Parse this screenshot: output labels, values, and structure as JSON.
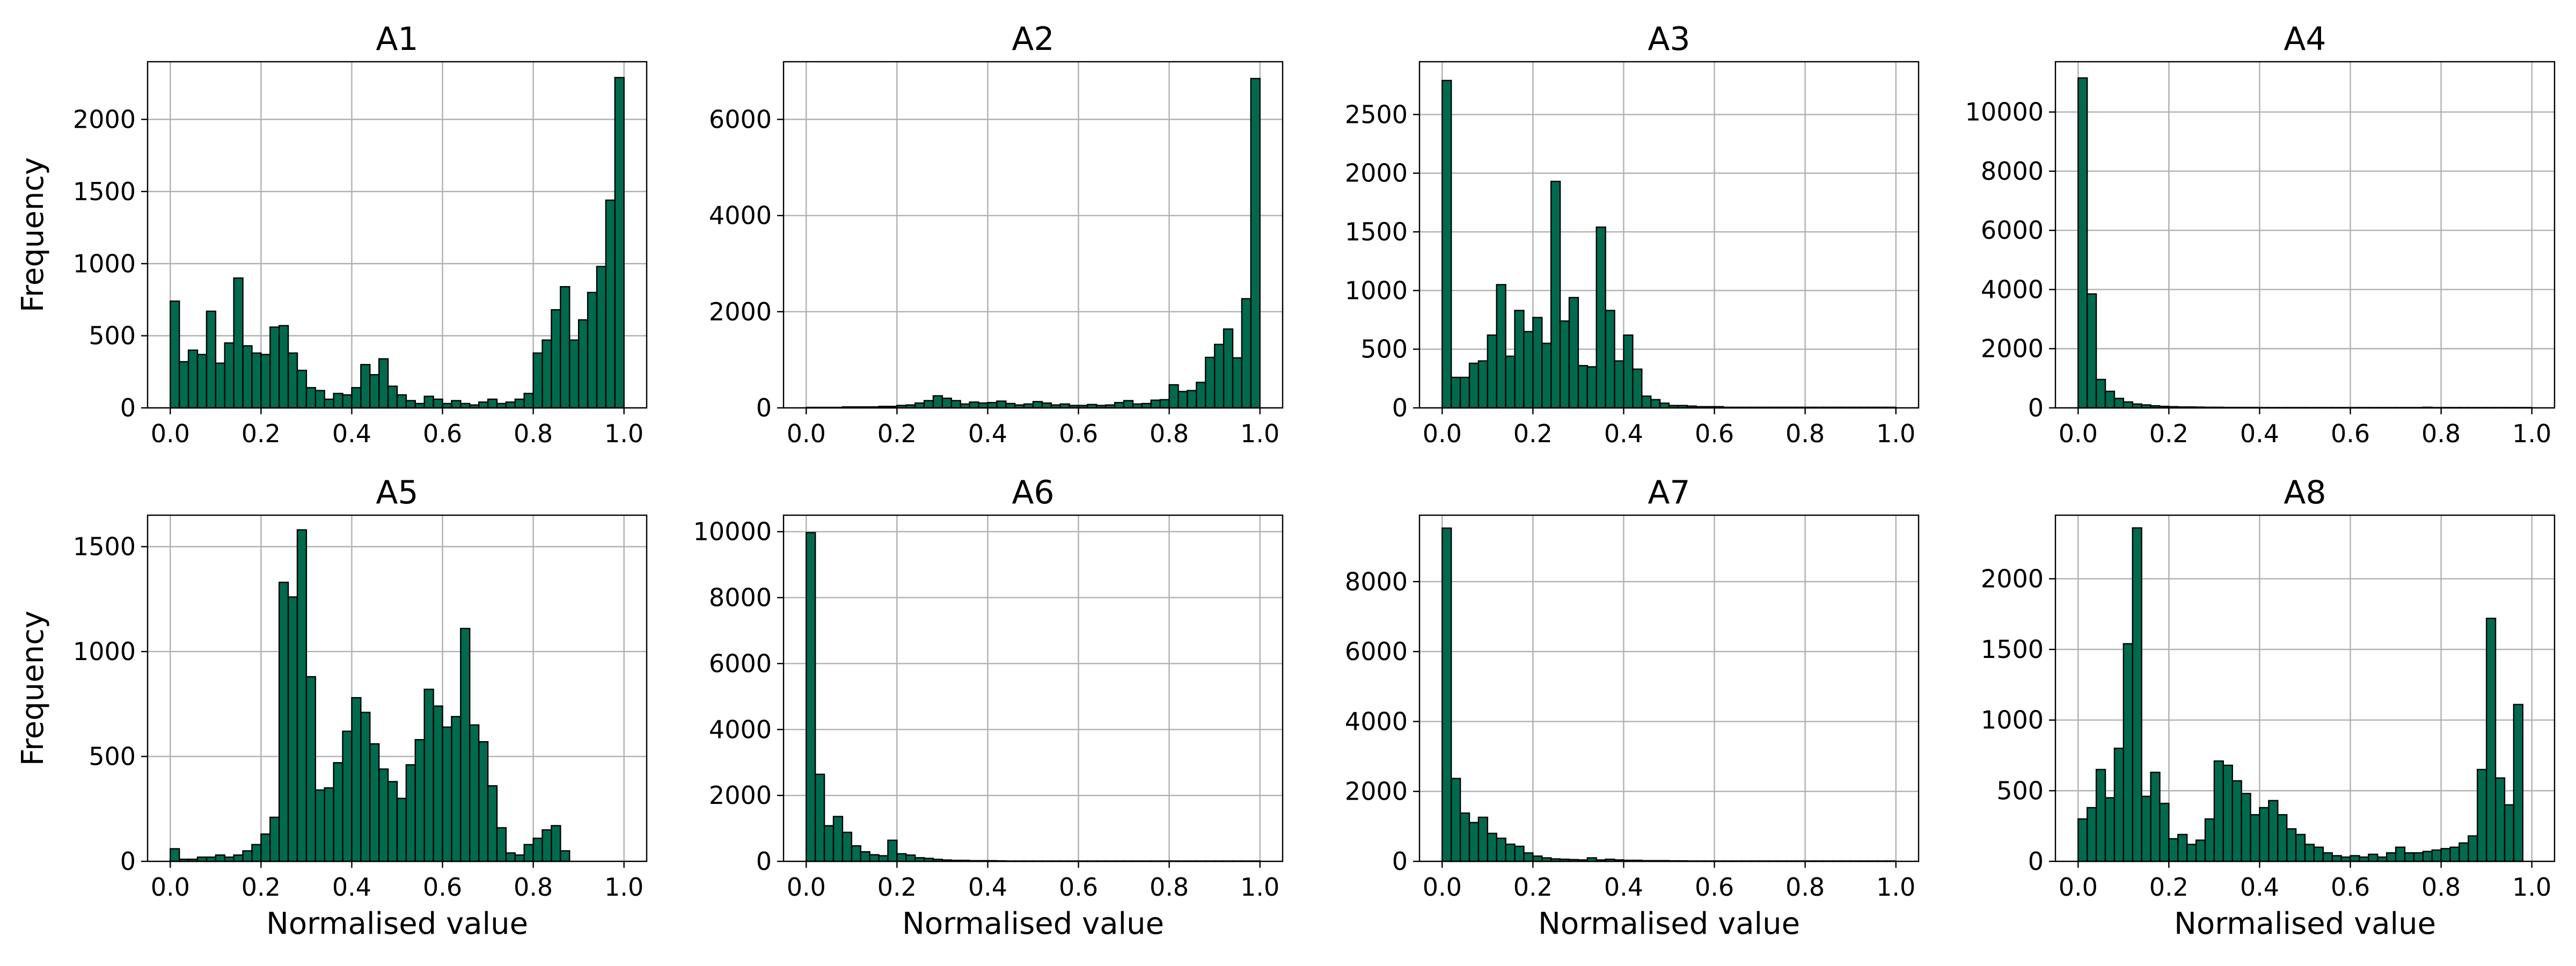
{
  "chart_data": {
    "type": "bar",
    "color": "#006a4e",
    "edge_color": "#000000",
    "grid": true,
    "subplots": [
      {
        "title": "A1",
        "ylabel": "Frequency",
        "xlabel": "",
        "xlim": [
          0,
          1
        ],
        "ylim": [
          0,
          2400
        ],
        "yticks": [
          "0",
          "500",
          "1000",
          "1500",
          "2000"
        ],
        "xticks": [
          "0.0",
          "0.2",
          "0.4",
          "0.6",
          "0.8",
          "1.0"
        ],
        "bin_width": 0.02,
        "values": [
          740,
          320,
          400,
          370,
          670,
          310,
          450,
          900,
          430,
          380,
          370,
          560,
          570,
          380,
          260,
          140,
          120,
          60,
          100,
          90,
          140,
          300,
          230,
          340,
          150,
          90,
          50,
          30,
          80,
          60,
          30,
          50,
          30,
          20,
          40,
          60,
          30,
          40,
          60,
          100,
          380,
          470,
          680,
          840,
          470,
          610,
          800,
          980,
          1440,
          2290
        ]
      },
      {
        "title": "A2",
        "ylabel": "",
        "xlabel": "",
        "xlim": [
          0,
          1
        ],
        "ylim": [
          0,
          7200
        ],
        "yticks": [
          "0",
          "2000",
          "4000",
          "6000"
        ],
        "xticks": [
          "0.0",
          "0.2",
          "0.4",
          "0.6",
          "0.8",
          "1.0"
        ],
        "bin_width": 0.02,
        "values": [
          10,
          10,
          10,
          10,
          20,
          20,
          20,
          20,
          30,
          30,
          50,
          60,
          100,
          150,
          250,
          200,
          150,
          80,
          120,
          100,
          110,
          140,
          90,
          60,
          80,
          130,
          100,
          60,
          80,
          50,
          50,
          70,
          50,
          60,
          110,
          150,
          80,
          90,
          160,
          170,
          480,
          340,
          360,
          530,
          1050,
          1320,
          1640,
          1040,
          2270,
          6850
        ]
      },
      {
        "title": "A3",
        "ylabel": "",
        "xlabel": "",
        "xlim": [
          0,
          1
        ],
        "ylim": [
          0,
          2950
        ],
        "yticks": [
          "0",
          "500",
          "1000",
          "1500",
          "2000",
          "2500"
        ],
        "xticks": [
          "0.0",
          "0.2",
          "0.4",
          "0.6",
          "0.8",
          "1.0"
        ],
        "bin_width": 0.02,
        "values": [
          2790,
          260,
          260,
          380,
          400,
          620,
          1050,
          440,
          830,
          650,
          770,
          550,
          1930,
          740,
          940,
          360,
          350,
          1540,
          830,
          400,
          620,
          330,
          100,
          70,
          40,
          20,
          20,
          15,
          10,
          10,
          10,
          5,
          5,
          5,
          5,
          5,
          5,
          5,
          5,
          5,
          5,
          5,
          5,
          5,
          5,
          5,
          5,
          5,
          5,
          5
        ]
      },
      {
        "title": "A4",
        "ylabel": "",
        "xlabel": "",
        "xlim": [
          0,
          1
        ],
        "ylim": [
          0,
          11700
        ],
        "yticks": [
          "0",
          "2000",
          "4000",
          "6000",
          "8000",
          "10000"
        ],
        "xticks": [
          "0.0",
          "0.2",
          "0.4",
          "0.6",
          "0.8",
          "1.0"
        ],
        "bin_width": 0.02,
        "values": [
          11150,
          3850,
          960,
          560,
          320,
          200,
          130,
          100,
          70,
          50,
          40,
          30,
          30,
          25,
          20,
          20,
          15,
          15,
          15,
          15,
          10,
          10,
          10,
          10,
          10,
          10,
          10,
          10,
          10,
          10,
          10,
          10,
          10,
          10,
          10,
          10,
          10,
          10,
          20,
          10,
          10,
          10,
          10,
          10,
          10,
          10,
          10,
          10,
          10,
          10
        ]
      },
      {
        "title": "A5",
        "ylabel": "Frequency",
        "xlabel": "Normalised value",
        "xlim": [
          0,
          1
        ],
        "ylim": [
          0,
          1650
        ],
        "yticks": [
          "0",
          "500",
          "1000",
          "1500"
        ],
        "xticks": [
          "0.0",
          "0.2",
          "0.4",
          "0.6",
          "0.8",
          "1.0"
        ],
        "bin_width": 0.02,
        "values": [
          60,
          10,
          10,
          20,
          20,
          30,
          20,
          30,
          50,
          80,
          130,
          210,
          1330,
          1260,
          1580,
          880,
          340,
          350,
          470,
          620,
          780,
          710,
          560,
          440,
          380,
          300,
          460,
          580,
          820,
          740,
          640,
          690,
          1110,
          650,
          570,
          360,
          160,
          40,
          30,
          80,
          110,
          150,
          170,
          50,
          0,
          0,
          0,
          0,
          0,
          0
        ]
      },
      {
        "title": "A6",
        "ylabel": "",
        "xlabel": "Normalised value",
        "xlim": [
          0,
          1
        ],
        "ylim": [
          0,
          10500
        ],
        "yticks": [
          "0",
          "2000",
          "4000",
          "6000",
          "8000",
          "10000"
        ],
        "xticks": [
          "0.0",
          "0.2",
          "0.4",
          "0.6",
          "0.8",
          "1.0"
        ],
        "bin_width": 0.02,
        "values": [
          9970,
          2640,
          1080,
          1360,
          880,
          470,
          290,
          200,
          170,
          640,
          230,
          190,
          110,
          90,
          60,
          40,
          30,
          30,
          20,
          20,
          20,
          15,
          10,
          10,
          10,
          10,
          10,
          10,
          10,
          10,
          10,
          10,
          10,
          10,
          10,
          10,
          10,
          10,
          10,
          10,
          10,
          10,
          10,
          10,
          10,
          10,
          10,
          10,
          10,
          10
        ]
      },
      {
        "title": "A7",
        "ylabel": "",
        "xlabel": "Normalised value",
        "xlim": [
          0,
          1
        ],
        "ylim": [
          0,
          9900
        ],
        "yticks": [
          "0",
          "2000",
          "4000",
          "6000",
          "8000"
        ],
        "xticks": [
          "0.0",
          "0.2",
          "0.4",
          "0.6",
          "0.8",
          "1.0"
        ],
        "bin_width": 0.02,
        "values": [
          9530,
          2370,
          1380,
          1110,
          1260,
          800,
          660,
          490,
          430,
          240,
          150,
          100,
          70,
          60,
          50,
          40,
          100,
          40,
          60,
          40,
          30,
          30,
          20,
          20,
          20,
          15,
          15,
          10,
          10,
          10,
          10,
          10,
          10,
          10,
          10,
          10,
          10,
          10,
          10,
          10,
          10,
          10,
          10,
          10,
          10,
          10,
          10,
          10,
          10,
          10
        ]
      },
      {
        "title": "A8",
        "ylabel": "",
        "xlabel": "Normalised value",
        "xlim": [
          0,
          1
        ],
        "ylim": [
          0,
          2450
        ],
        "yticks": [
          "0",
          "500",
          "1000",
          "1500",
          "2000"
        ],
        "xticks": [
          "0.0",
          "0.2",
          "0.4",
          "0.6",
          "0.8",
          "1.0"
        ],
        "bin_width": 0.02,
        "values": [
          300,
          380,
          650,
          450,
          800,
          1540,
          2360,
          460,
          630,
          410,
          160,
          190,
          120,
          150,
          300,
          710,
          680,
          570,
          480,
          330,
          380,
          430,
          330,
          230,
          190,
          120,
          100,
          60,
          40,
          30,
          40,
          30,
          50,
          30,
          60,
          100,
          60,
          60,
          70,
          80,
          90,
          100,
          130,
          180,
          650,
          1720,
          590,
          400,
          1110,
          0
        ]
      }
    ]
  }
}
